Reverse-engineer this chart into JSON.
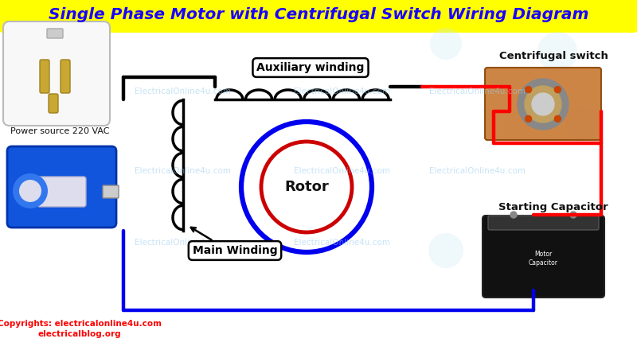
{
  "title": "Single Phase Motor with Centrifugal Switch Wiring Diagram",
  "title_color": "#1a00ff",
  "title_bg": "#ffff00",
  "bg_color": "#ffffff",
  "label_auxiliary": "Auxiliary winding",
  "label_main": "Main Winding",
  "label_rotor": "Rotor",
  "label_centrifugal": "Centrifugal switch",
  "label_capacitor": "Starting Capacitor",
  "label_power": "Power source 220 VAC",
  "copyright1": "Copyrights: electricalonline4u.com",
  "copyright2": "electricalblog.org",
  "watermark": "ElectricalOnline4u.com",
  "wire_black": "#000000",
  "wire_blue": "#0000ee",
  "wire_red": "#ff0000",
  "coil_color": "#000000",
  "rotor_outer": "#0000ee",
  "rotor_inner": "#cc0000"
}
